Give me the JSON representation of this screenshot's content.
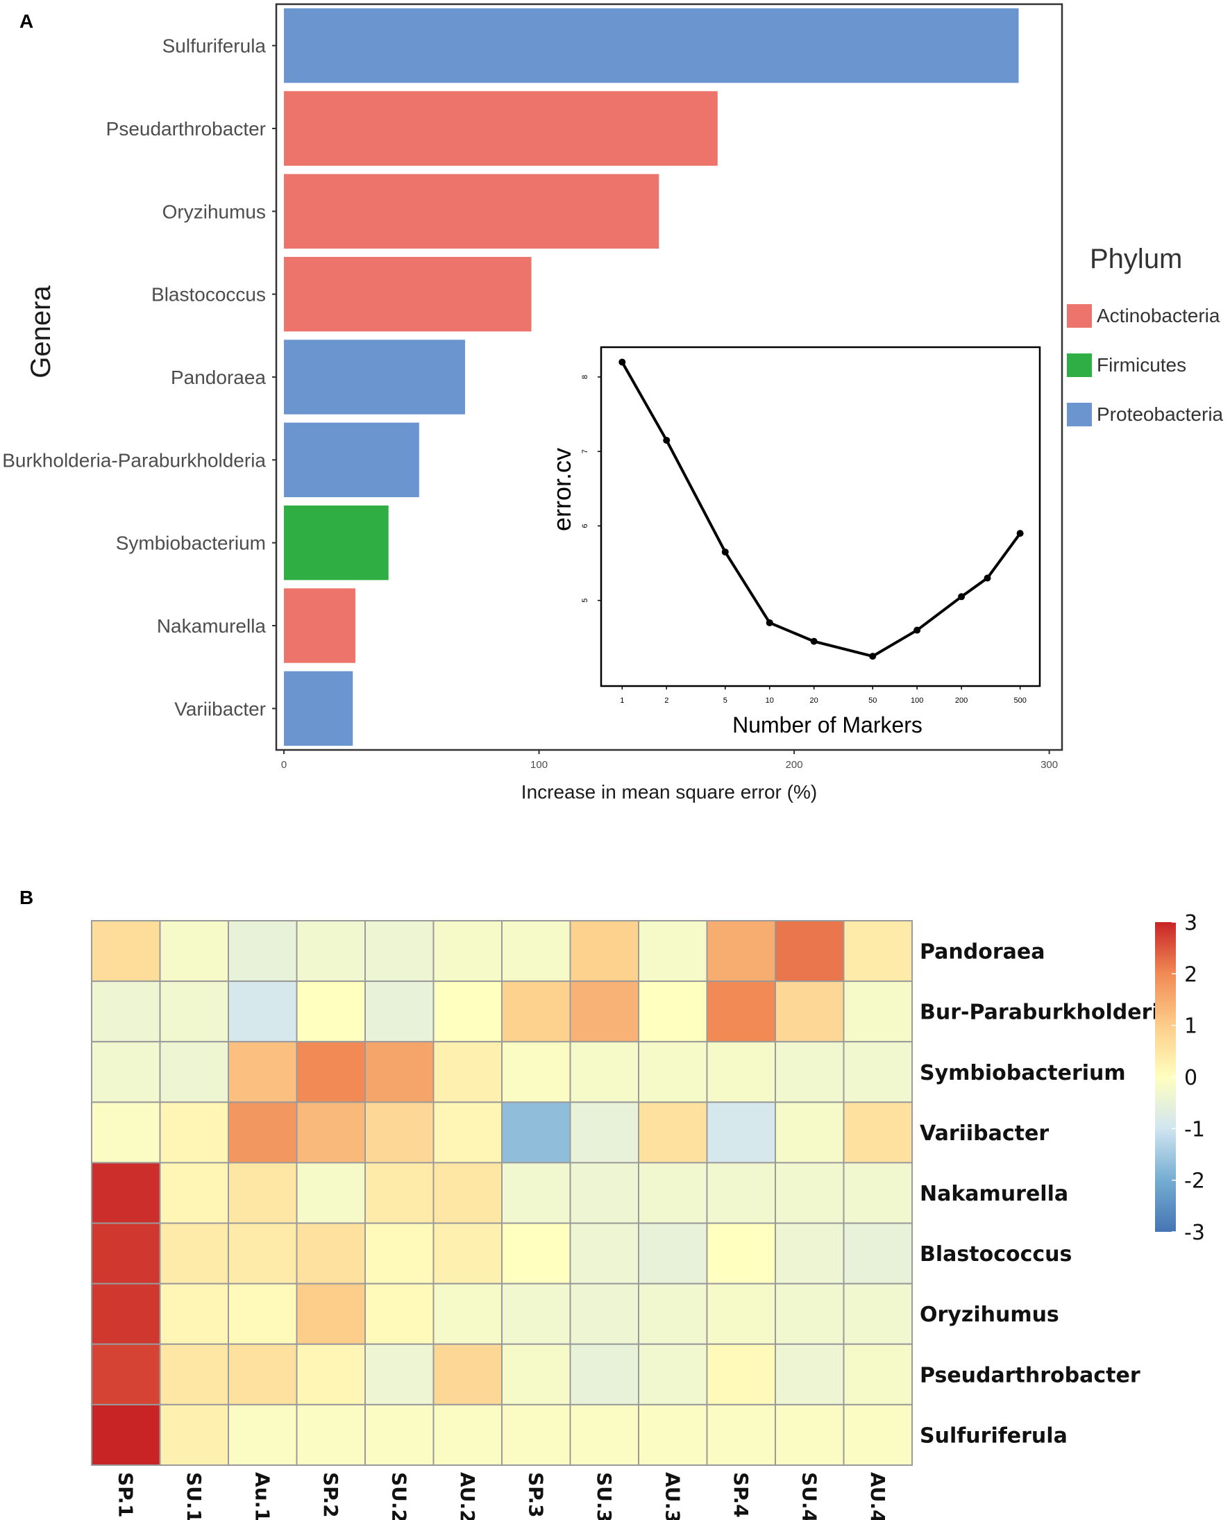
{
  "chart_data": [
    {
      "panel": "A",
      "type": "bar",
      "orientation": "horizontal",
      "categories": [
        "Sulfuriferula",
        "Pseudarthrobacter",
        "Oryzihumus",
        "Blastococcus",
        "Pandoraea",
        "Burkholderia-Paraburkholderia",
        "Symbiobacterium",
        "Nakamurella",
        "Variibacter"
      ],
      "values": [
        288,
        170,
        147,
        97,
        71,
        53,
        41,
        28,
        27
      ],
      "phylum": [
        "Proteobacteria",
        "Actinobacteria",
        "Actinobacteria",
        "Actinobacteria",
        "Proteobacteria",
        "Proteobacteria",
        "Firmicutes",
        "Actinobacteria",
        "Proteobacteria"
      ],
      "xlabel": "Increase in mean square error (%)",
      "ylabel": "Genera",
      "xlim": [
        -3,
        305
      ],
      "xticks": [
        "0",
        "100",
        "200",
        "300"
      ],
      "legend": {
        "title": "Phylum",
        "entries": [
          {
            "label": "Actinobacteria",
            "color": "#ec746a"
          },
          {
            "label": "Firmicutes",
            "color": "#2eae43"
          },
          {
            "label": "Proteobacteria",
            "color": "#6a95cf"
          }
        ]
      }
    },
    {
      "panel": "A-inset",
      "type": "line",
      "x": [
        1,
        2,
        5,
        10,
        20,
        50,
        100,
        200,
        300,
        500
      ],
      "y": [
        8.2,
        7.15,
        5.65,
        4.7,
        4.45,
        4.25,
        4.6,
        5.05,
        5.3,
        5.9
      ],
      "xticks": [
        "1",
        "2",
        "5",
        "10",
        "20",
        "50",
        "100",
        "200",
        "500"
      ],
      "yticks": [
        "5",
        "6",
        "7",
        "8"
      ],
      "xlabel": "Number of Markers",
      "ylabel": "error.cv",
      "ylim": [
        3.85,
        8.4
      ]
    },
    {
      "panel": "B",
      "type": "heatmap",
      "rows": [
        "Pandoraea",
        "Bur-Paraburkholderia",
        "Symbiobacterium",
        "Variibacter",
        "Nakamurella",
        "Blastococcus",
        "Oryzihumus",
        "Pseudarthrobacter",
        "Sulfuriferula"
      ],
      "columns": [
        "SP.1",
        "SU.1",
        "Au.1",
        "SP.2",
        "SU.2",
        "AU.2",
        "SP.3",
        "SU.3",
        "AU.3",
        "SP.4",
        "SU.4",
        "AU.4"
      ],
      "values": [
        [
          0.7,
          -0.2,
          -0.5,
          -0.3,
          -0.4,
          -0.2,
          -0.2,
          0.9,
          -0.2,
          1.5,
          2.2,
          0.4
        ],
        [
          -0.4,
          -0.3,
          -0.9,
          0.0,
          -0.5,
          0.0,
          0.9,
          1.4,
          0.0,
          2.0,
          0.8,
          -0.2
        ],
        [
          -0.3,
          -0.4,
          1.2,
          2.0,
          1.6,
          0.3,
          -0.1,
          -0.2,
          -0.2,
          -0.2,
          -0.3,
          -0.3
        ],
        [
          -0.1,
          0.2,
          1.8,
          1.3,
          0.8,
          0.2,
          -1.7,
          -0.5,
          0.6,
          -0.9,
          -0.2,
          0.6
        ],
        [
          2.9,
          0.2,
          0.5,
          -0.2,
          0.4,
          0.5,
          -0.3,
          -0.4,
          -0.3,
          -0.3,
          -0.3,
          -0.3
        ],
        [
          2.8,
          0.4,
          0.4,
          0.6,
          0.1,
          0.3,
          0.0,
          -0.4,
          -0.5,
          0.0,
          -0.4,
          -0.5
        ],
        [
          2.8,
          0.2,
          0.1,
          1.0,
          0.1,
          -0.2,
          -0.3,
          -0.4,
          -0.3,
          -0.2,
          -0.3,
          -0.3
        ],
        [
          2.7,
          0.5,
          0.6,
          0.2,
          -0.4,
          0.8,
          -0.2,
          -0.5,
          -0.3,
          0.1,
          -0.4,
          -0.2
        ],
        [
          3.2,
          0.3,
          -0.1,
          -0.1,
          -0.1,
          -0.1,
          -0.1,
          -0.1,
          -0.1,
          -0.1,
          -0.1,
          -0.1
        ]
      ],
      "colorbar": {
        "range": [
          -3,
          3
        ],
        "ticks": [
          "3",
          "2",
          "1",
          "0",
          "-1",
          "-2",
          "-3"
        ]
      }
    }
  ],
  "panel_letters": {
    "a": "A",
    "b": "B"
  }
}
